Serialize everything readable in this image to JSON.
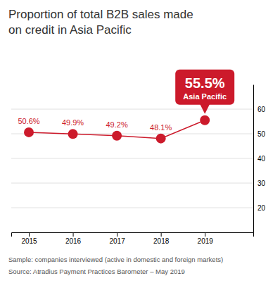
{
  "chart_data": {
    "type": "line",
    "title": [
      "Proportion of total B2B sales made",
      "on credit in Asia Pacific"
    ],
    "x": [
      2015,
      2016,
      2017,
      2018,
      2019
    ],
    "values": [
      50.6,
      49.9,
      49.2,
      48.1,
      55.5
    ],
    "value_labels": [
      "50.6%",
      "49.9%",
      "49.2%",
      "48.1%",
      null
    ],
    "data_labels": true,
    "color": "#cc1a2b",
    "marker": "circle",
    "xlim": [
      2014.6,
      2020.1
    ],
    "xticks": [
      2015,
      2016,
      2017,
      2018,
      2019
    ],
    "ylim": [
      10,
      70
    ],
    "yticks": [
      20,
      30,
      40,
      50,
      60
    ],
    "grid": true,
    "annotations": [
      {
        "x": 2019,
        "y": 55.5,
        "text": "55.5%",
        "subtext": "Asia Pacific"
      }
    ],
    "notes": [
      "Sample: companies interviewed (active in domestic and foreign markets)",
      "Source: Atradius Payment Practices Barometer – May 2019"
    ]
  }
}
